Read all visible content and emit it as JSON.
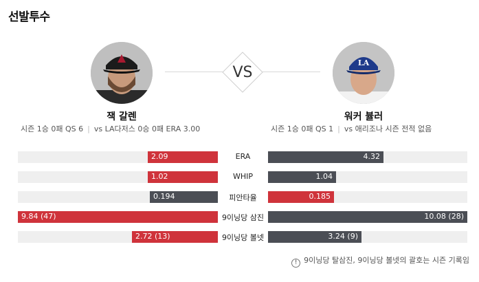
{
  "title": "선발투수",
  "vs_label": "VS",
  "left_pitcher": {
    "name": "잭 갈렌",
    "season": "시즌 1승 0패 QS 6",
    "vs_record": "vs LA다저스 0승 0패 ERA 3.00",
    "team_color": "#a71930"
  },
  "right_pitcher": {
    "name": "워커 뷸러",
    "season": "시즌 1승 0패 QS 1",
    "vs_record": "vs 애리조나 시즌 전적 없음",
    "team_color": "#1e3a8a"
  },
  "colors": {
    "better": "#cf333b",
    "worse": "#4b4e55",
    "track": "#efefef"
  },
  "stats": [
    {
      "label": "ERA",
      "left": {
        "value": "2.09",
        "fill": 0.35,
        "better": true
      },
      "right": {
        "value": "4.32",
        "fill": 0.58,
        "better": false
      }
    },
    {
      "label": "WHIP",
      "left": {
        "value": "1.02",
        "fill": 0.35,
        "better": true
      },
      "right": {
        "value": "1.04",
        "fill": 0.34,
        "better": false
      }
    },
    {
      "label": "피안타율",
      "left": {
        "value": "0.194",
        "fill": 0.34,
        "better": false
      },
      "right": {
        "value": "0.185",
        "fill": 0.33,
        "better": true
      }
    },
    {
      "label": "9이닝당 삼진",
      "left": {
        "value": "9.84 (47)",
        "fill": 1.0,
        "better": true
      },
      "right": {
        "value": "10.08 (28)",
        "fill": 1.0,
        "better": false
      }
    },
    {
      "label": "9이닝당 볼넷",
      "left": {
        "value": "2.72 (13)",
        "fill": 0.43,
        "better": true
      },
      "right": {
        "value": "3.24 (9)",
        "fill": 0.47,
        "better": false
      }
    }
  ],
  "footnote": "9이닝당 탈삼진, 9이닝당 볼넷의 괄호는 시즌 기록임",
  "icons": {
    "footnote": "info-icon"
  }
}
